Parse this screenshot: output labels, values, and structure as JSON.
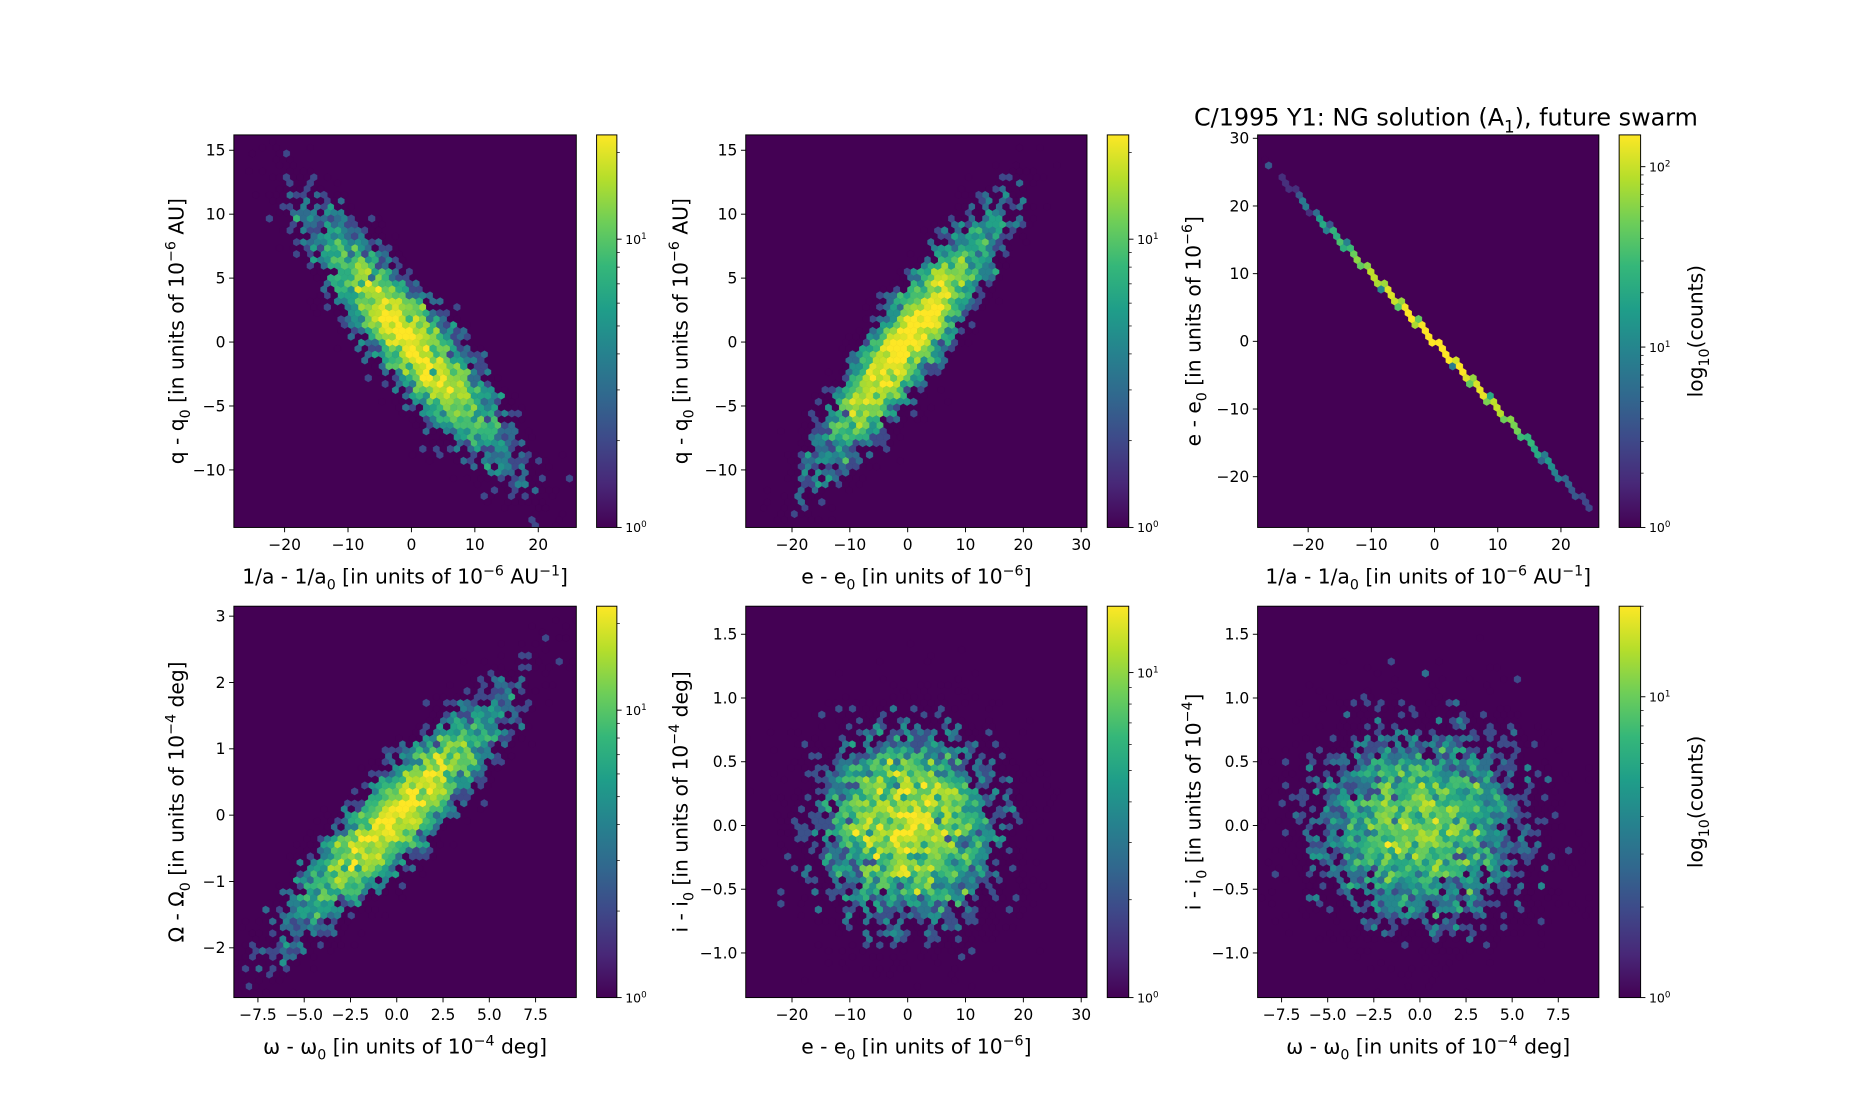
{
  "title": "C/1995 Y1:  NG solution (A_{1}), future swarm",
  "colormap": "viridis",
  "chart_data": [
    {
      "type": "heatmap",
      "kind": "hexbin",
      "xlabel": "1/a - 1/a_{0} [in units of 10^{−6} AU^{−1}]",
      "ylabel": "q - q_{0} [in units of 10^{−6} AU]",
      "xlim": [
        -28,
        26
      ],
      "ylim": [
        -14.5,
        16.2
      ],
      "xticks": [
        -20,
        -10,
        0,
        10,
        20
      ],
      "xtick_labels": [
        "−20",
        "−10",
        "0",
        "10",
        "20"
      ],
      "yticks": [
        -10,
        -5,
        0,
        5,
        10,
        15
      ],
      "ytick_labels": [
        "−10",
        "−5",
        "0",
        "5",
        "10",
        "15"
      ],
      "colorbar": {
        "scale": "log",
        "range": [
          1,
          23
        ],
        "ticks": [
          1,
          10
        ],
        "tick_labels": [
          "10^{0}",
          "10^{1}"
        ],
        "label": ""
      },
      "sample_model": {
        "x_mean": 0,
        "y_mean": 0,
        "x_sigma": 8,
        "y_sigma": 5,
        "correlation": -0.9,
        "n": 5000
      }
    },
    {
      "type": "heatmap",
      "kind": "hexbin",
      "xlabel": "e - e_{0} [in units of 10^{−6}]",
      "ylabel": "q - q_{0} [in units of 10^{−6} AU]",
      "xlim": [
        -28,
        31
      ],
      "ylim": [
        -14.5,
        16.2
      ],
      "xticks": [
        -20,
        -10,
        0,
        10,
        20,
        30
      ],
      "xtick_labels": [
        "−20",
        "−10",
        "0",
        "10",
        "20",
        "30"
      ],
      "yticks": [
        -10,
        -5,
        0,
        5,
        10,
        15
      ],
      "ytick_labels": [
        "−10",
        "−5",
        "0",
        "5",
        "10",
        "15"
      ],
      "colorbar": {
        "scale": "log",
        "range": [
          1,
          23
        ],
        "ticks": [
          1,
          10
        ],
        "tick_labels": [
          "10^{0}",
          "10^{1}"
        ],
        "label": ""
      },
      "sample_model": {
        "x_mean": 0,
        "y_mean": 0,
        "x_sigma": 8,
        "y_sigma": 5,
        "correlation": 0.9,
        "n": 5000
      }
    },
    {
      "type": "heatmap",
      "kind": "hexbin",
      "xlabel": "1/a - 1/a_{0} [in units of 10^{−6} AU^{−1}]",
      "ylabel": "e - e_{0} [in units of 10^{−6}]",
      "xlim": [
        -28,
        26
      ],
      "ylim": [
        -27.5,
        30.5
      ],
      "xticks": [
        -20,
        -10,
        0,
        10,
        20
      ],
      "xtick_labels": [
        "−20",
        "−10",
        "0",
        "10",
        "20"
      ],
      "yticks": [
        -20,
        -10,
        0,
        10,
        20,
        30
      ],
      "ytick_labels": [
        "−20",
        "−10",
        "0",
        "10",
        "20",
        "30"
      ],
      "colorbar": {
        "scale": "log",
        "range": [
          1,
          150
        ],
        "ticks": [
          1,
          10,
          100
        ],
        "tick_labels": [
          "10^{0}",
          "10^{1}",
          "10^{2}"
        ],
        "label": "log_{10}(counts)"
      },
      "sample_model": {
        "x_mean": 0,
        "y_mean": 0,
        "x_sigma": 8,
        "y_sigma": 8,
        "correlation": -1.0,
        "n": 5000
      }
    },
    {
      "type": "heatmap",
      "kind": "hexbin",
      "xlabel": "ω - ω_{0} [in units of 10^{−4} deg]",
      "ylabel": "Ω - Ω_{0} [in units of 10^{−4} deg]",
      "xlim": [
        -8.8,
        9.7
      ],
      "ylim": [
        -2.75,
        3.15
      ],
      "xticks": [
        -7.5,
        -5,
        -2.5,
        0,
        2.5,
        5,
        7.5
      ],
      "xtick_labels": [
        "−7.5",
        "−5.0",
        "−2.5",
        "0.0",
        "2.5",
        "5.0",
        "7.5"
      ],
      "yticks": [
        -2,
        -1,
        0,
        1,
        2,
        3
      ],
      "ytick_labels": [
        "−2",
        "−1",
        "0",
        "1",
        "2",
        "3"
      ],
      "colorbar": {
        "scale": "log",
        "range": [
          1,
          23
        ],
        "ticks": [
          1,
          10
        ],
        "tick_labels": [
          "10^{0}",
          "10^{1}"
        ],
        "label": ""
      },
      "sample_model": {
        "x_mean": 0,
        "y_mean": 0,
        "x_sigma": 3,
        "y_sigma": 0.9,
        "correlation": 0.9,
        "n": 5000
      }
    },
    {
      "type": "heatmap",
      "kind": "hexbin",
      "xlabel": "e - e_{0} [in units of 10^{−6}]",
      "ylabel": "i - i_{0} [in units of 10^{−4} deg]",
      "xlim": [
        -28,
        31
      ],
      "ylim": [
        -1.35,
        1.72
      ],
      "xticks": [
        -20,
        -10,
        0,
        10,
        20,
        30
      ],
      "xtick_labels": [
        "−20",
        "−10",
        "0",
        "10",
        "20",
        "30"
      ],
      "yticks": [
        -1,
        -0.5,
        0,
        0.5,
        1,
        1.5
      ],
      "ytick_labels": [
        "−1.0",
        "−0.5",
        "0.0",
        "0.5",
        "1.0",
        "1.5"
      ],
      "colorbar": {
        "scale": "log",
        "range": [
          1,
          16
        ],
        "ticks": [
          1,
          10
        ],
        "tick_labels": [
          "10^{0}",
          "10^{1}"
        ],
        "label": ""
      },
      "sample_model": {
        "x_mean": 0,
        "y_mean": 0,
        "x_sigma": 8,
        "y_sigma": 0.4,
        "correlation": 0,
        "n": 5000
      }
    },
    {
      "type": "heatmap",
      "kind": "hexbin",
      "xlabel": "ω - ω_{0} [in units of 10^{−4} deg]",
      "ylabel": "i - i_{0} [in units of 10^{−4}]",
      "xlim": [
        -8.8,
        9.7
      ],
      "ylim": [
        -1.35,
        1.72
      ],
      "xticks": [
        -7.5,
        -5,
        -2.5,
        0,
        2.5,
        5,
        7.5
      ],
      "xtick_labels": [
        "−7.5",
        "−5.0",
        "−2.5",
        "0.0",
        "2.5",
        "5.0",
        "7.5"
      ],
      "yticks": [
        -1,
        -0.5,
        0,
        0.5,
        1,
        1.5
      ],
      "ytick_labels": [
        "−1.0",
        "−0.5",
        "0.0",
        "0.5",
        "1.0",
        "1.5"
      ],
      "colorbar": {
        "scale": "log",
        "range": [
          1,
          20
        ],
        "ticks": [
          1,
          10
        ],
        "tick_labels": [
          "10^{0}",
          "10^{1}"
        ],
        "label": "log_{10}(counts)"
      },
      "sample_model": {
        "x_mean": 0,
        "y_mean": 0,
        "x_sigma": 3,
        "y_sigma": 0.4,
        "correlation": 0,
        "n": 5000
      }
    }
  ]
}
